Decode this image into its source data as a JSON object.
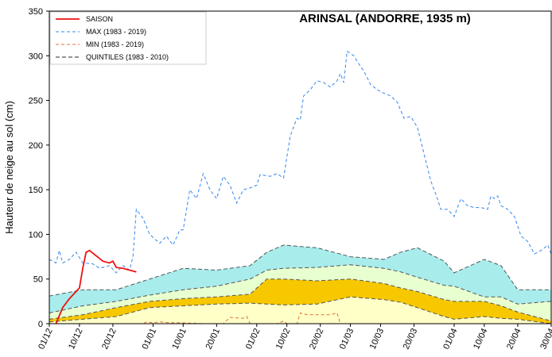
{
  "chart_data": {
    "type": "line",
    "title": "ARINSAL  (ANDORRE, 1935 m)",
    "y_label": "Hauteur de neige au sol (cm)",
    "xlim": [
      0,
      150
    ],
    "xticks": [
      {
        "value": 0,
        "label": "01/12"
      },
      {
        "value": 9,
        "label": "10/12"
      },
      {
        "value": 19,
        "label": "20/12"
      },
      {
        "value": 31,
        "label": "01/01"
      },
      {
        "value": 40,
        "label": "10/01"
      },
      {
        "value": 50,
        "label": "20/01"
      },
      {
        "value": 62,
        "label": "01/02"
      },
      {
        "value": 71,
        "label": "10/02"
      },
      {
        "value": 81,
        "label": "20/02"
      },
      {
        "value": 90,
        "label": "01/03"
      },
      {
        "value": 99,
        "label": "10/03"
      },
      {
        "value": 109,
        "label": "20/03"
      },
      {
        "value": 121,
        "label": "01/04"
      },
      {
        "value": 130,
        "label": "10/04"
      },
      {
        "value": 140,
        "label": "20/04"
      },
      {
        "value": 150,
        "label": "30/04"
      }
    ],
    "ylim": [
      0,
      350
    ],
    "yticks": [
      0,
      50,
      100,
      150,
      200,
      250,
      300,
      350
    ],
    "series": [
      {
        "name": "SAISON",
        "color": "#ee1111",
        "dash": "none",
        "width": 1.8,
        "x": [
          2,
          4,
          6,
          9,
          10,
          11,
          12,
          14,
          16,
          18,
          19,
          20,
          22,
          24,
          26
        ],
        "values": [
          0,
          18,
          28,
          40,
          62,
          80,
          82,
          76,
          70,
          68,
          70,
          63,
          62,
          60,
          58
        ]
      },
      {
        "name": "MAX (1983  - 2019)",
        "color": "#3388ee",
        "dash": "4 3",
        "width": 1,
        "x": [
          0,
          2,
          3,
          4,
          6,
          8,
          10,
          13,
          15,
          18,
          20,
          22,
          24,
          25,
          26,
          28,
          30,
          33,
          35,
          37,
          39,
          40,
          42,
          44,
          46,
          48,
          50,
          52,
          54,
          56,
          58,
          60,
          62,
          63,
          66,
          68,
          70,
          72,
          74,
          75,
          76,
          78,
          80,
          82,
          84,
          86,
          87,
          88,
          89,
          91,
          93,
          94,
          96,
          98,
          100,
          102,
          104,
          106,
          108,
          110,
          112,
          114,
          116,
          117,
          119,
          121,
          123,
          125,
          127,
          129,
          131,
          132,
          133,
          134,
          135,
          137,
          139,
          141,
          143,
          145,
          147,
          149,
          150
        ],
        "values": [
          72,
          68,
          82,
          68,
          72,
          80,
          68,
          67,
          62,
          65,
          57,
          65,
          60,
          75,
          128,
          118,
          100,
          90,
          98,
          88,
          105,
          105,
          150,
          140,
          168,
          150,
          140,
          165,
          155,
          135,
          150,
          152,
          155,
          167,
          165,
          168,
          163,
          210,
          230,
          228,
          255,
          262,
          272,
          270,
          265,
          272,
          280,
          270,
          305,
          300,
          288,
          283,
          268,
          262,
          258,
          255,
          248,
          230,
          232,
          220,
          190,
          160,
          140,
          128,
          128,
          120,
          140,
          132,
          130,
          130,
          128,
          143,
          140,
          143,
          132,
          128,
          120,
          98,
          92,
          78,
          82,
          88,
          78
        ]
      },
      {
        "name": "MIN (1983  - 2019)",
        "color": "#e0703a",
        "dash": "4 3",
        "width": 1,
        "x": [
          0,
          28,
          29,
          31,
          33,
          36,
          39,
          46,
          52,
          54,
          58,
          59,
          60,
          68,
          70,
          71,
          74,
          75,
          77,
          80,
          84,
          86,
          87,
          150
        ],
        "values": [
          0,
          0,
          2,
          1,
          2,
          1,
          1,
          0,
          0,
          7,
          6,
          8,
          0,
          0,
          3,
          0,
          0,
          12,
          10,
          10,
          10,
          12,
          0,
          0
        ]
      }
    ],
    "quintiles": {
      "name": "QUINTILES (1983  - 2010)",
      "color": "#555555",
      "fills": [
        "#ffffc8",
        "#f7c800",
        "#e8ffd0",
        "#a8ecec"
      ],
      "x": [
        0,
        10,
        20,
        30,
        40,
        50,
        60,
        65,
        70,
        80,
        90,
        100,
        105,
        110,
        118,
        121,
        130,
        135,
        140,
        150
      ],
      "lines": [
        [
          2,
          5,
          8,
          18,
          20,
          22,
          23,
          22,
          21,
          22,
          30,
          27,
          24,
          18,
          8,
          5,
          8,
          6,
          5,
          0
        ],
        [
          5,
          10,
          18,
          25,
          28,
          30,
          33,
          50,
          50,
          48,
          50,
          45,
          40,
          36,
          27,
          25,
          25,
          20,
          13,
          3
        ],
        [
          12,
          20,
          25,
          32,
          38,
          42,
          50,
          60,
          62,
          63,
          66,
          62,
          58,
          52,
          43,
          42,
          30,
          30,
          22,
          25
        ],
        [
          31,
          38,
          38,
          50,
          62,
          60,
          65,
          80,
          88,
          85,
          75,
          72,
          80,
          85,
          70,
          57,
          72,
          65,
          38,
          38
        ]
      ]
    },
    "legend": "upper left"
  }
}
